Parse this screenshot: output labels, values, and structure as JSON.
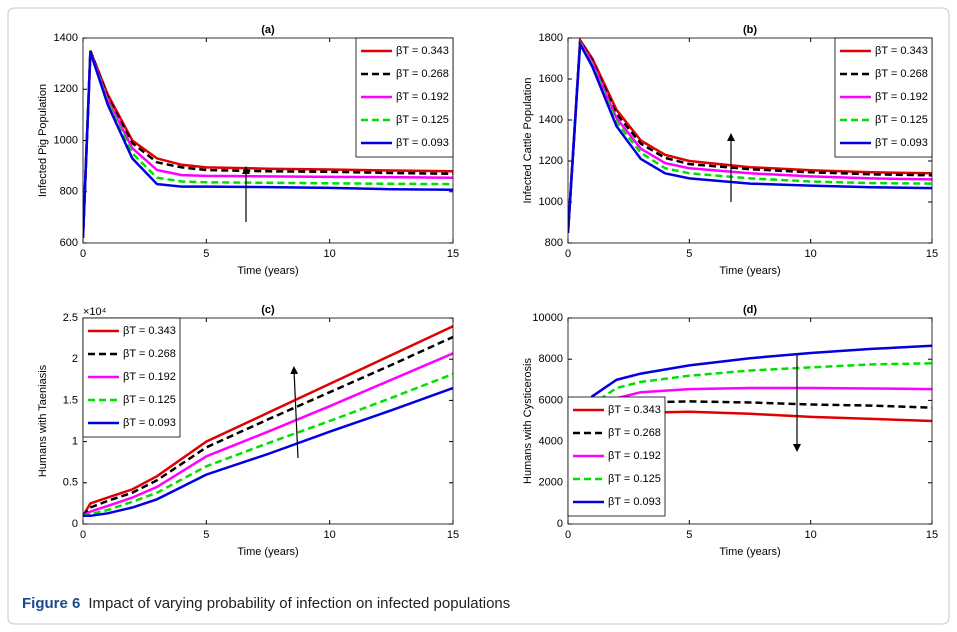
{
  "chart_data": [
    {
      "type": "line",
      "title": "(a)",
      "x_label": "Time (years)",
      "y_label": "Infected Pig Population",
      "x": [
        0,
        0.3,
        1,
        2,
        3,
        4,
        5,
        7.5,
        10,
        12.5,
        15
      ],
      "xlim": [
        0,
        15
      ],
      "xticks": [
        0,
        5,
        10,
        15
      ],
      "ylim": [
        600,
        1400
      ],
      "yticks": [
        600,
        800,
        1000,
        1200,
        1400
      ],
      "legend": "upper right",
      "series": [
        {
          "name": "βT = 0.343",
          "color": "#e00000",
          "linestyle": "solid",
          "values": [
            620,
            1350,
            1180,
            1000,
            930,
            905,
            895,
            890,
            887,
            883,
            880
          ]
        },
        {
          "name": "βT = 0.268",
          "color": "#000000",
          "linestyle": "dashed",
          "values": [
            620,
            1350,
            1170,
            990,
            915,
            895,
            885,
            880,
            878,
            873,
            870
          ]
        },
        {
          "name": "βT = 0.192",
          "color": "#ff00ff",
          "linestyle": "solid",
          "values": [
            620,
            1345,
            1160,
            970,
            885,
            865,
            862,
            860,
            858,
            857,
            855
          ]
        },
        {
          "name": "βT = 0.125",
          "color": "#00e000",
          "linestyle": "dashed",
          "values": [
            620,
            1345,
            1150,
            950,
            855,
            840,
            837,
            835,
            833,
            831,
            830
          ]
        },
        {
          "name": "βT = 0.093",
          "color": "#0000e0",
          "linestyle": "solid",
          "values": [
            620,
            1345,
            1140,
            930,
            830,
            820,
            820,
            818,
            815,
            810,
            808
          ]
        }
      ]
    },
    {
      "type": "line",
      "title": "(b)",
      "x_label": "Time (years)",
      "y_label": "Infected Cattle Population",
      "x": [
        0,
        0.5,
        1,
        2,
        3,
        4,
        5,
        7.5,
        10,
        12.5,
        15
      ],
      "xlim": [
        0,
        15
      ],
      "xticks": [
        0,
        5,
        10,
        15
      ],
      "ylim": [
        800,
        1800
      ],
      "yticks": [
        800,
        1000,
        1200,
        1400,
        1600,
        1800
      ],
      "legend": "upper right",
      "series": [
        {
          "name": "βT = 0.343",
          "color": "#e00000",
          "linestyle": "solid",
          "values": [
            850,
            1790,
            1700,
            1450,
            1300,
            1230,
            1200,
            1170,
            1155,
            1145,
            1140
          ]
        },
        {
          "name": "βT = 0.268",
          "color": "#000000",
          "linestyle": "dashed",
          "values": [
            850,
            1785,
            1690,
            1430,
            1285,
            1215,
            1185,
            1160,
            1145,
            1135,
            1130
          ]
        },
        {
          "name": "βT = 0.192",
          "color": "#ff00ff",
          "linestyle": "solid",
          "values": [
            850,
            1780,
            1680,
            1410,
            1260,
            1190,
            1165,
            1140,
            1125,
            1115,
            1110
          ]
        },
        {
          "name": "βT = 0.125",
          "color": "#00e000",
          "linestyle": "dashed",
          "values": [
            850,
            1775,
            1670,
            1390,
            1240,
            1165,
            1140,
            1115,
            1100,
            1092,
            1090
          ]
        },
        {
          "name": "βT = 0.093",
          "color": "#0000e0",
          "linestyle": "solid",
          "values": [
            850,
            1770,
            1660,
            1370,
            1210,
            1140,
            1115,
            1090,
            1080,
            1072,
            1068
          ]
        }
      ]
    },
    {
      "type": "line",
      "title": "(c)",
      "x_label": "Time (years)",
      "y_label": "Humans with Taeniasis",
      "y_multiplier": "×10⁴",
      "x": [
        0,
        0.3,
        1,
        2,
        3,
        5,
        7.5,
        10,
        12.5,
        15
      ],
      "xlim": [
        0,
        15
      ],
      "xticks": [
        0,
        5,
        10,
        15
      ],
      "ylim": [
        0,
        2.5
      ],
      "yticks": [
        0,
        0.5,
        1,
        1.5,
        2,
        2.5
      ],
      "legend": "upper left",
      "series": [
        {
          "name": "βT = 0.343",
          "color": "#e00000",
          "linestyle": "solid",
          "values": [
            0.1,
            0.25,
            0.32,
            0.42,
            0.58,
            1.0,
            1.35,
            1.7,
            2.05,
            2.4
          ]
        },
        {
          "name": "βT = 0.268",
          "color": "#000000",
          "linestyle": "dashed",
          "values": [
            0.1,
            0.2,
            0.28,
            0.38,
            0.53,
            0.93,
            1.27,
            1.6,
            1.93,
            2.27
          ]
        },
        {
          "name": "βT = 0.192",
          "color": "#ff00ff",
          "linestyle": "solid",
          "values": [
            0.1,
            0.15,
            0.22,
            0.32,
            0.45,
            0.82,
            1.12,
            1.43,
            1.75,
            2.07
          ]
        },
        {
          "name": "βT = 0.125",
          "color": "#00e000",
          "linestyle": "dashed",
          "values": [
            0.1,
            0.12,
            0.17,
            0.27,
            0.38,
            0.7,
            0.98,
            1.25,
            1.53,
            1.82
          ]
        },
        {
          "name": "βT = 0.093",
          "color": "#0000e0",
          "linestyle": "solid",
          "values": [
            0.1,
            0.1,
            0.13,
            0.2,
            0.3,
            0.6,
            0.85,
            1.12,
            1.38,
            1.65
          ]
        }
      ]
    },
    {
      "type": "line",
      "title": "(d)",
      "x_label": "Time (years)",
      "y_label": "Humans with Cysticerosis",
      "x": [
        0,
        0.2,
        0.5,
        1,
        2,
        3,
        5,
        7.5,
        10,
        12.5,
        15
      ],
      "xlim": [
        0,
        15
      ],
      "xticks": [
        0,
        5,
        10,
        15
      ],
      "ylim": [
        0,
        10000
      ],
      "yticks": [
        0,
        2000,
        4000,
        6000,
        8000,
        10000
      ],
      "legend": "lower left",
      "series": [
        {
          "name": "βT = 0.343",
          "color": "#e00000",
          "linestyle": "solid",
          "values": [
            600,
            3000,
            4000,
            4600,
            5200,
            5400,
            5450,
            5350,
            5200,
            5100,
            5000
          ]
        },
        {
          "name": "βT = 0.268",
          "color": "#000000",
          "linestyle": "dashed",
          "values": [
            600,
            3300,
            4300,
            5000,
            5700,
            5900,
            5950,
            5900,
            5800,
            5750,
            5650
          ]
        },
        {
          "name": "βT = 0.192",
          "color": "#ff00ff",
          "linestyle": "solid",
          "values": [
            600,
            3500,
            4600,
            5400,
            6100,
            6400,
            6550,
            6600,
            6600,
            6580,
            6550
          ]
        },
        {
          "name": "βT = 0.125",
          "color": "#00e000",
          "linestyle": "dashed",
          "values": [
            600,
            3800,
            5000,
            5800,
            6600,
            6900,
            7200,
            7450,
            7600,
            7750,
            7800
          ]
        },
        {
          "name": "βT = 0.093",
          "color": "#0000e0",
          "linestyle": "solid",
          "values": [
            600,
            4000,
            5300,
            6200,
            7000,
            7300,
            7700,
            8050,
            8300,
            8500,
            8650
          ]
        }
      ]
    }
  ],
  "caption_label": "Figure 6",
  "caption": "Impact of varying probability of infection on infected populations"
}
